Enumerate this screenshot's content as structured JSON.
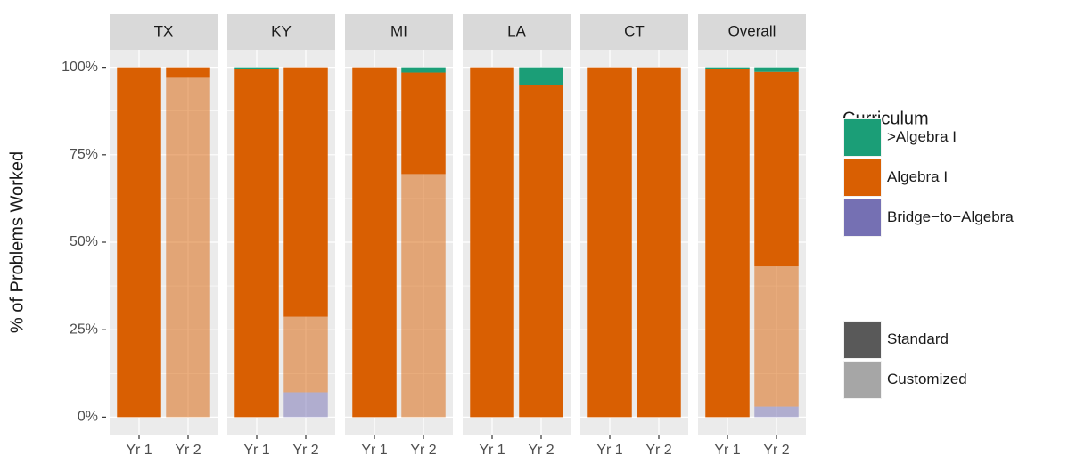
{
  "chart_data": {
    "type": "bar",
    "y_label": "% of Problems Worked",
    "ylim": [
      -5,
      105
    ],
    "yticks": [
      {
        "value": 0,
        "label": "0%"
      },
      {
        "value": 25,
        "label": "25%"
      },
      {
        "value": 50,
        "label": "50%"
      },
      {
        "value": 75,
        "label": "75%"
      },
      {
        "value": 100,
        "label": "100%"
      }
    ],
    "grid": true,
    "legend": {
      "title": "Curriculum",
      "position": "right",
      "curricula": [
        {
          "name": ">Algebra I",
          "color": "#1b9e77"
        },
        {
          "name": "Algebra I",
          "color": "#d95f02"
        },
        {
          "name": "Bridge−to−Algebra",
          "color": "#7570b3"
        }
      ],
      "key_color": "#595959",
      "styles": [
        {
          "name": "Standard",
          "opacity": 1
        },
        {
          "name": "Customized",
          "opacity": 0.5
        }
      ]
    },
    "facets": [
      {
        "name": "TX",
        "categories": [
          "Yr 1",
          "Yr 2"
        ],
        "series": [
          {
            "curriculum": "Bridge−to−Algebra",
            "style": "Customized",
            "values": [
              null,
              null
            ]
          },
          {
            "curriculum": "Algebra I",
            "style": "Customized",
            "values": [
              null,
              97
            ]
          },
          {
            "curriculum": "Algebra I",
            "style": "Standard",
            "values": [
              100,
              3
            ]
          },
          {
            "curriculum": ">Algebra I",
            "style": "Standard",
            "values": [
              null,
              null
            ]
          }
        ]
      },
      {
        "name": "KY",
        "categories": [
          "Yr 1",
          "Yr 2"
        ],
        "series": [
          {
            "curriculum": "Bridge−to−Algebra",
            "style": "Customized",
            "values": [
              null,
              7.1
            ]
          },
          {
            "curriculum": "Algebra I",
            "style": "Customized",
            "values": [
              null,
              21.6
            ]
          },
          {
            "curriculum": "Algebra I",
            "style": "Standard",
            "values": [
              99.5,
              71.3
            ]
          },
          {
            "curriculum": ">Algebra I",
            "style": "Standard",
            "values": [
              0.5,
              null
            ]
          }
        ]
      },
      {
        "name": "MI",
        "categories": [
          "Yr 1",
          "Yr 2"
        ],
        "series": [
          {
            "curriculum": "Bridge−to−Algebra",
            "style": "Customized",
            "values": [
              null,
              null
            ]
          },
          {
            "curriculum": "Algebra I",
            "style": "Customized",
            "values": [
              null,
              69.5
            ]
          },
          {
            "curriculum": "Algebra I",
            "style": "Standard",
            "values": [
              100,
              29
            ]
          },
          {
            "curriculum": ">Algebra I",
            "style": "Standard",
            "values": [
              null,
              1.5
            ]
          }
        ]
      },
      {
        "name": "LA",
        "categories": [
          "Yr 1",
          "Yr 2"
        ],
        "series": [
          {
            "curriculum": "Bridge−to−Algebra",
            "style": "Customized",
            "values": [
              null,
              null
            ]
          },
          {
            "curriculum": "Algebra I",
            "style": "Customized",
            "values": [
              null,
              null
            ]
          },
          {
            "curriculum": "Algebra I",
            "style": "Standard",
            "values": [
              100,
              94.9
            ]
          },
          {
            "curriculum": ">Algebra I",
            "style": "Standard",
            "values": [
              null,
              5.1
            ]
          }
        ]
      },
      {
        "name": "CT",
        "categories": [
          "Yr 1",
          "Yr 2"
        ],
        "series": [
          {
            "curriculum": "Bridge−to−Algebra",
            "style": "Customized",
            "values": [
              null,
              null
            ]
          },
          {
            "curriculum": "Algebra I",
            "style": "Customized",
            "values": [
              null,
              null
            ]
          },
          {
            "curriculum": "Algebra I",
            "style": "Standard",
            "values": [
              100,
              100
            ]
          },
          {
            "curriculum": ">Algebra I",
            "style": "Standard",
            "values": [
              null,
              null
            ]
          }
        ]
      },
      {
        "name": "Overall",
        "categories": [
          "Yr 1",
          "Yr 2"
        ],
        "series": [
          {
            "curriculum": "Bridge−to−Algebra",
            "style": "Customized",
            "values": [
              null,
              3
            ]
          },
          {
            "curriculum": "Algebra I",
            "style": "Customized",
            "values": [
              null,
              40.1
            ]
          },
          {
            "curriculum": "Algebra I",
            "style": "Standard",
            "values": [
              99.5,
              55.6
            ]
          },
          {
            "curriculum": ">Algebra I",
            "style": "Standard",
            "values": [
              0.5,
              1.3
            ]
          }
        ]
      }
    ]
  }
}
